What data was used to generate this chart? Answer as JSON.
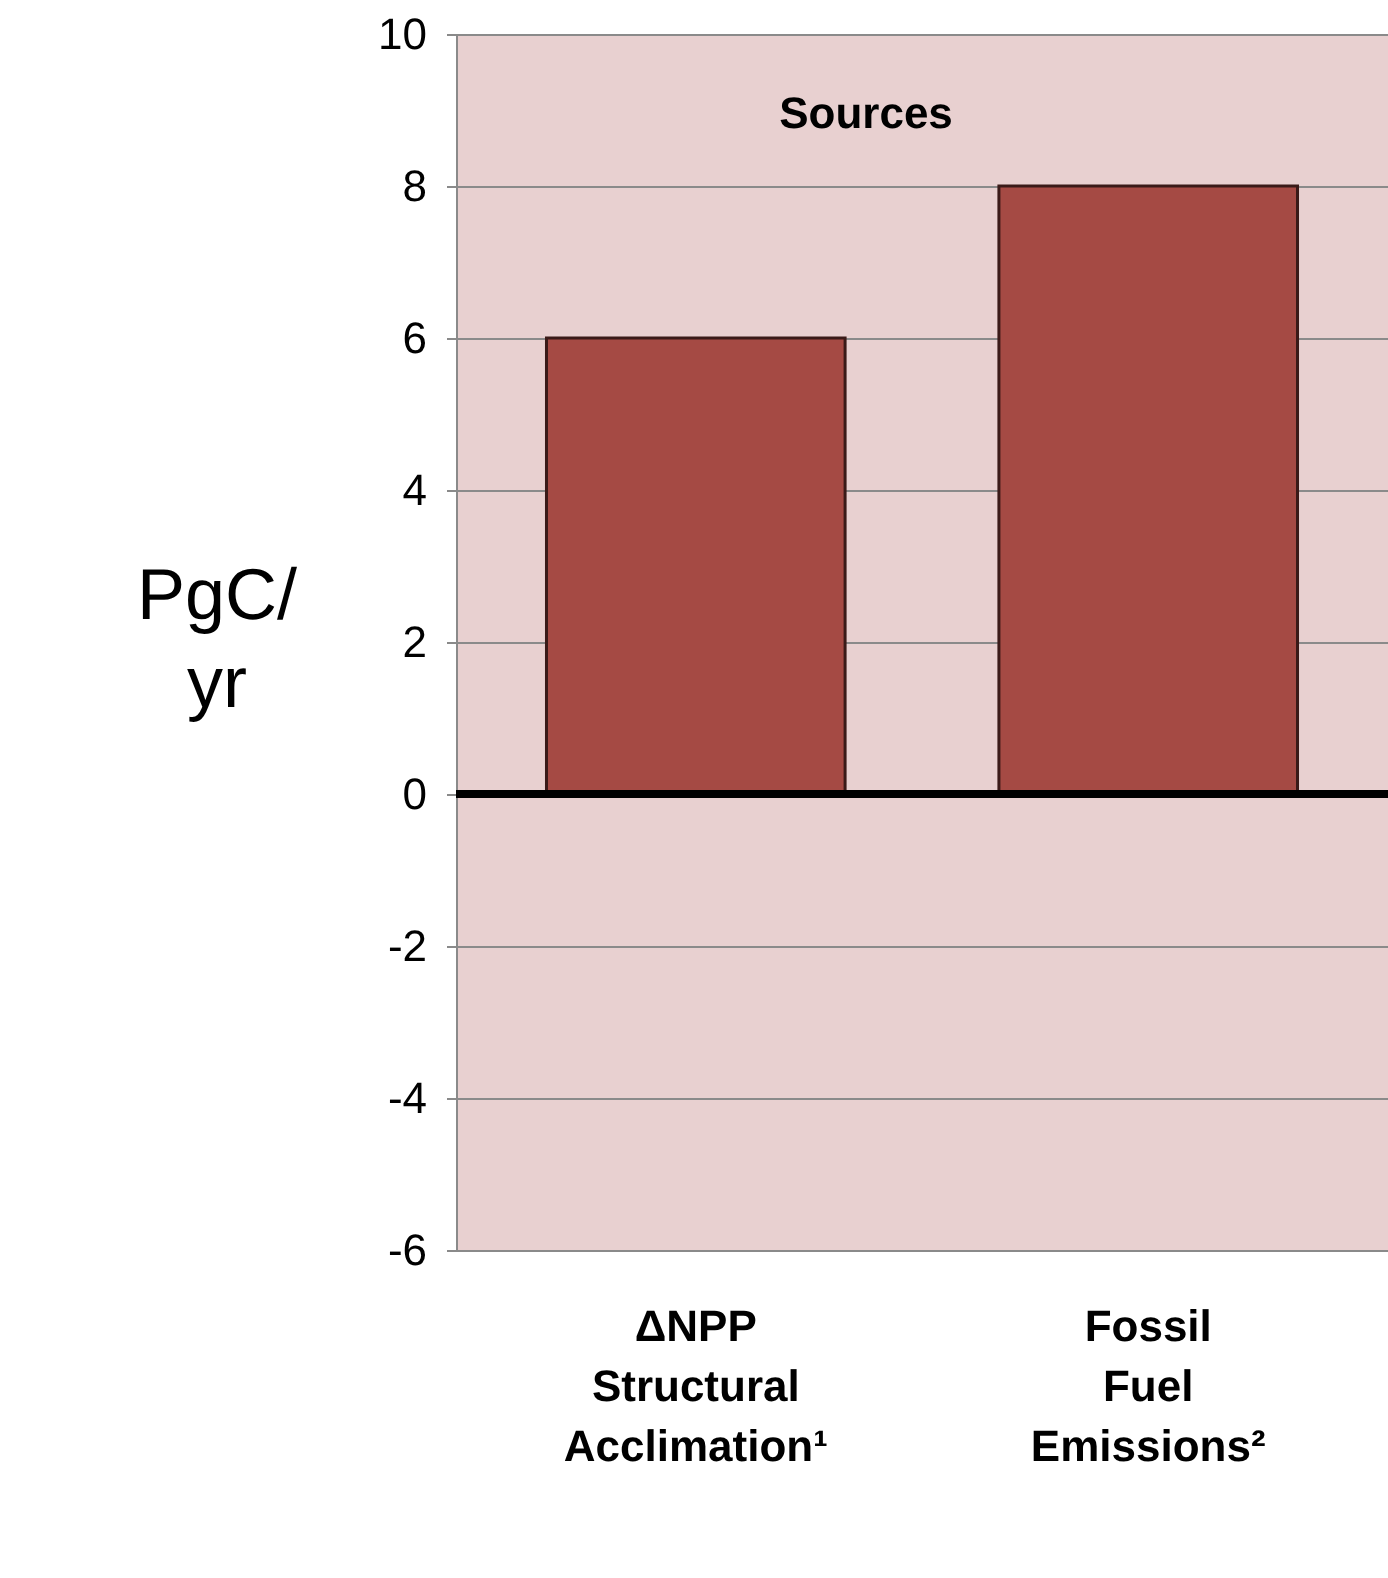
{
  "chart_data": {
    "type": "bar",
    "ylabel": "PgC/\nyr",
    "categories": [
      "ΔNPP\nStructural\nAcclimation¹",
      "Fossil\nFuel\nEmissions²"
    ],
    "values": [
      6,
      8
    ],
    "color": "#a54a44",
    "ylim": [
      -6,
      10
    ],
    "yticks": [
      -6,
      -4,
      -2,
      0,
      2,
      4,
      6,
      8,
      10
    ],
    "grid": "y",
    "ref_lines": [
      {
        "axis": "y",
        "value": 0,
        "color": "#000000"
      }
    ],
    "annotations": [
      "Sources"
    ]
  }
}
